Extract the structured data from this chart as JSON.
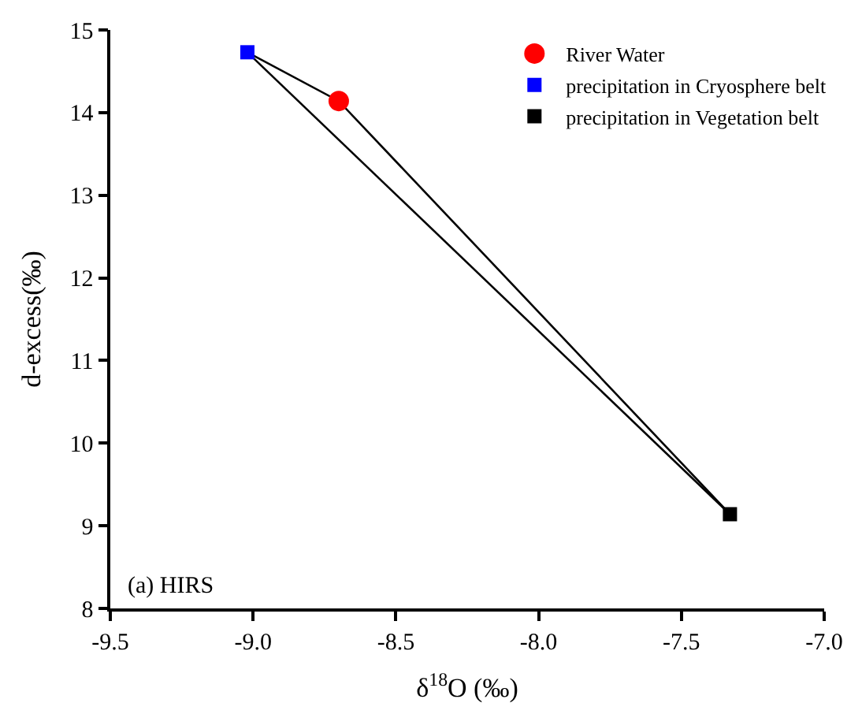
{
  "chart_data": {
    "type": "scatter",
    "xlabel": "δ$^{18}$O (‰)",
    "ylabel": "d-excess(‰)",
    "xlim": [
      -9.5,
      -7.0
    ],
    "ylim": [
      8,
      15
    ],
    "xticks": [
      {
        "value": -9.5,
        "label": "-9.5"
      },
      {
        "value": -9.0,
        "label": "-9.0"
      },
      {
        "value": -8.5,
        "label": "-8.5"
      },
      {
        "value": -8.0,
        "label": "-8.0"
      },
      {
        "value": -7.5,
        "label": "-7.5"
      },
      {
        "value": -7.0,
        "label": "-7.0"
      }
    ],
    "yticks": [
      8,
      9,
      10,
      11,
      12,
      13,
      14,
      15
    ],
    "grid": false,
    "legend": "top right",
    "annotations": [
      "(a) HIRS"
    ],
    "series": [
      {
        "type": "line",
        "color": "#000000",
        "marker": "none",
        "x": [
          -9.02,
          -8.7,
          -7.33
        ],
        "values": [
          14.73,
          14.14,
          9.14
        ]
      },
      {
        "type": "line",
        "color": "#000000",
        "marker": "none",
        "x": [
          -9.02,
          -7.33
        ],
        "values": [
          14.73,
          9.14
        ]
      },
      {
        "name": "River Water",
        "color": "#ff0000",
        "marker": "circle",
        "x": [
          -8.7
        ],
        "values": [
          14.14
        ]
      },
      {
        "name": "precipitation in Cryosphere belt",
        "color": "#0000ff",
        "marker": "square",
        "x": [
          -9.02
        ],
        "values": [
          14.73
        ]
      },
      {
        "name": "precipitation in Vegetation belt",
        "color": "#000000",
        "marker": "square",
        "x": [
          -7.33
        ],
        "values": [
          9.14
        ]
      }
    ]
  }
}
